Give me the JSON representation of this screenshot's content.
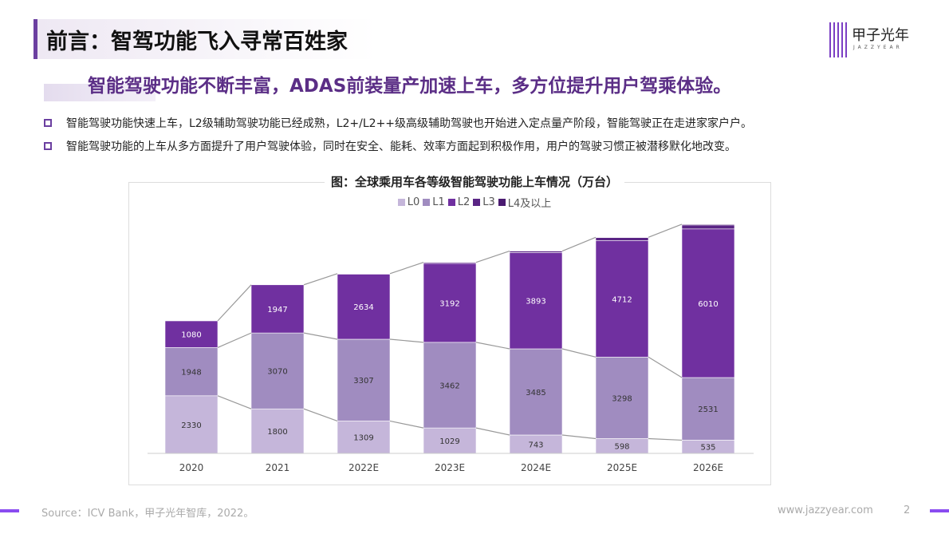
{
  "header": {
    "title": "前言：智驾功能飞入寻常百姓家",
    "logo_cn": "甲子光年",
    "logo_en": "JAZZYEAR"
  },
  "subtitle": "智能驾驶功能不断丰富，ADAS前装量产加速上车，多方位提升用户驾乘体验。",
  "bullets": [
    "智能驾驶功能快速上车，L2级辅助驾驶功能已经成熟，L2+/L2++级高级辅助驾驶也开始进入定点量产阶段，智能驾驶正在走进家家户户。",
    "智能驾驶功能的上车从多方面提升了用户驾驶体验，同时在安全、能耗、效率方面起到积极作用，用户的驾驶习惯正被潜移默化地改变。"
  ],
  "chart_data": {
    "type": "bar",
    "stacked": true,
    "title": "图：全球乘用车各等级智能驾驶功能上车情况（万台）",
    "categories": [
      "2020",
      "2021",
      "2022E",
      "2023E",
      "2024E",
      "2025E",
      "2026E"
    ],
    "legend_position": "top",
    "series": [
      {
        "name": "L0",
        "color": "#c5b6da",
        "values": [
          2330,
          1800,
          1309,
          1029,
          743,
          598,
          535
        ],
        "labeled": true
      },
      {
        "name": "L1",
        "color": "#a08cc0",
        "values": [
          1948,
          3070,
          3307,
          3462,
          3485,
          3298,
          2531
        ],
        "labeled": true
      },
      {
        "name": "L2",
        "color": "#7030a0",
        "values": [
          1080,
          1947,
          2634,
          3192,
          3893,
          4712,
          6010
        ],
        "labeled": true
      },
      {
        "name": "L3",
        "color": "#5a2585",
        "values": [
          0,
          0,
          20,
          40,
          60,
          120,
          160
        ],
        "labeled": false
      },
      {
        "name": "L4及以上",
        "color": "#4a1a70",
        "values": [
          0,
          0,
          0,
          0,
          0,
          10,
          30
        ],
        "labeled": false
      }
    ]
  },
  "footer": {
    "source": "Source：ICV Bank，甲子光年智库，2022。",
    "url": "www.jazzyear.com",
    "page": "2"
  }
}
